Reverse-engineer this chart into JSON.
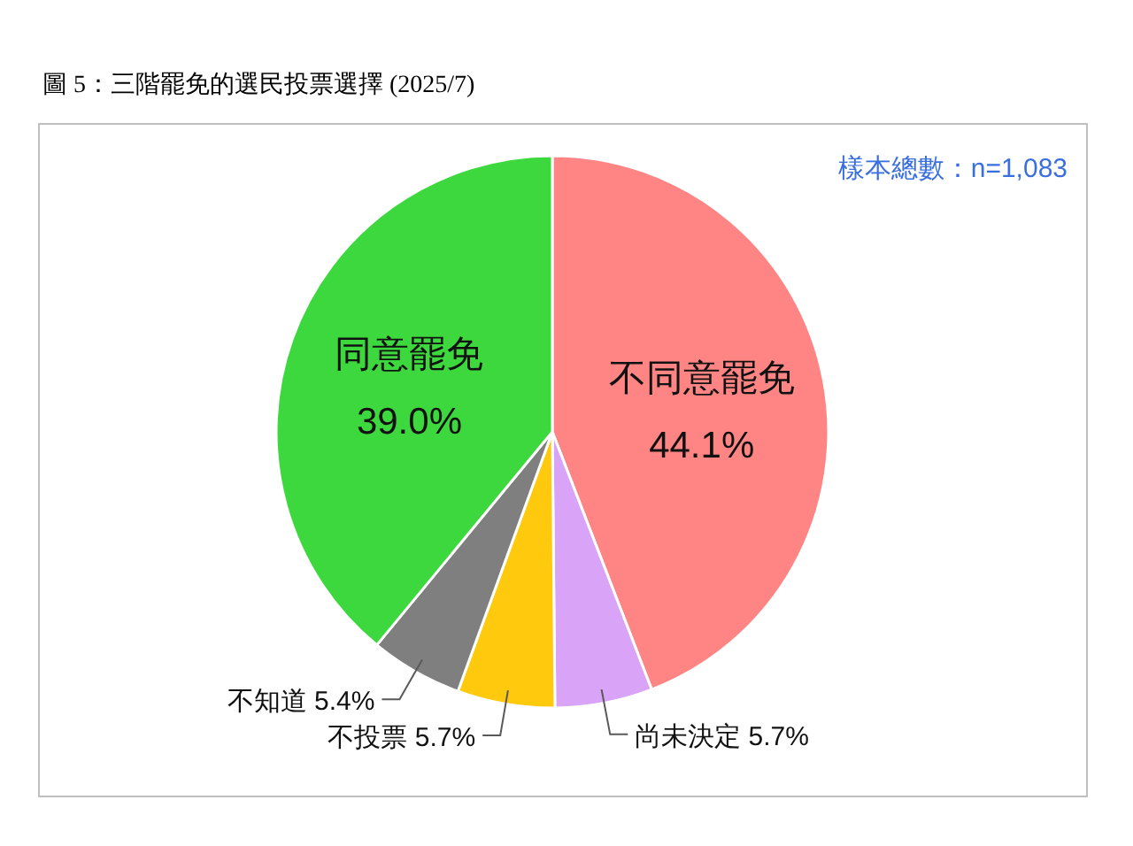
{
  "chart_data": {
    "type": "pie",
    "title": "圖 5：三階罷免的選民投票選擇 (2025/7)",
    "annotations": [
      "樣本總數：n=1,083"
    ],
    "categories": [
      "不同意罷免",
      "尚未決定",
      "不投票",
      "不知道",
      "同意罷免"
    ],
    "values": [
      44.1,
      5.7,
      5.7,
      5.4,
      39.0
    ],
    "colors": [
      "#ff8585",
      "#d9a3f7",
      "#ffc90e",
      "#7f7f7f",
      "#3dd83d"
    ],
    "value_labels": [
      "44.1%",
      "5.7%",
      "5.7%",
      "5.4%",
      "39.0%"
    ],
    "legend": false
  }
}
